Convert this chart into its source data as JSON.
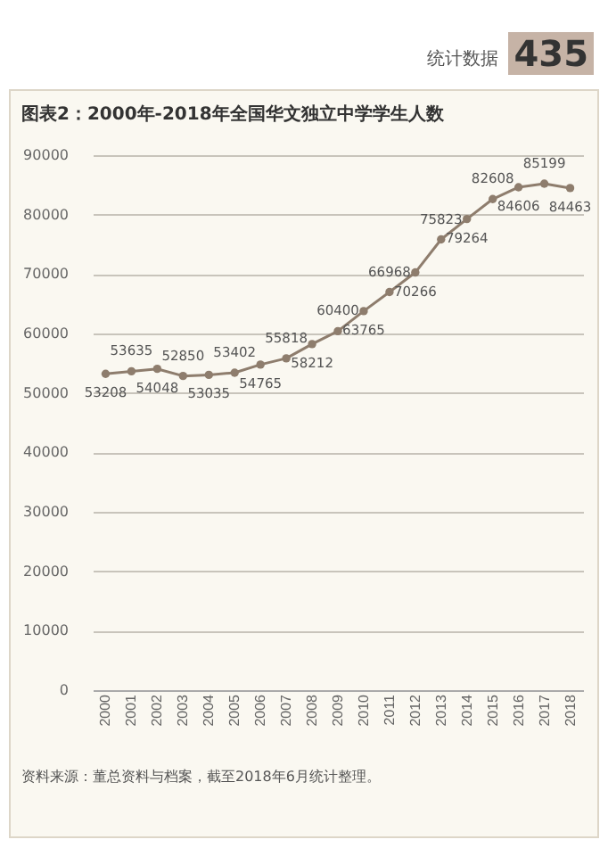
{
  "chart_data": {
    "type": "line",
    "title": "图表2：2000年-2018年全国华文独立中学学生人数",
    "categories": [
      "2000",
      "2001",
      "2002",
      "2003",
      "2004",
      "2005",
      "2006",
      "2007",
      "2008",
      "2009",
      "2010",
      "2011",
      "2012",
      "2013",
      "2014",
      "2015",
      "2016",
      "2017",
      "2018"
    ],
    "series": [
      {
        "color": "#8e7d6d",
        "values": [
          53208,
          53635,
          54048,
          52850,
          53035,
          53402,
          54765,
          55818,
          58212,
          60400,
          63765,
          66968,
          70266,
          75823,
          79264,
          82608,
          84606,
          85199,
          84463
        ]
      }
    ],
    "ylim": [
      0,
      90000
    ],
    "yticks": [
      0,
      10000,
      20000,
      30000,
      40000,
      50000,
      60000,
      70000,
      80000,
      90000
    ],
    "grid": "y",
    "marker": "circle",
    "data_labels": true,
    "annotations": [
      "资料来源：董总资料与档案，截至2018年6月统计整理。",
      "统计数据",
      "435"
    ]
  }
}
